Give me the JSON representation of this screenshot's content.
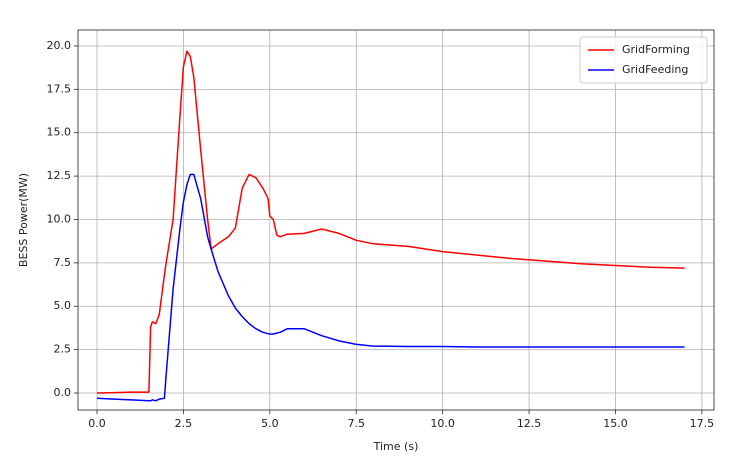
{
  "chart_data": {
    "type": "line",
    "x_label": "Time (s)",
    "y_label": "BESS Power(MW)",
    "x": [
      0,
      0.5,
      1.0,
      1.5,
      1.55,
      1.6,
      1.7,
      1.8,
      1.95,
      2.0,
      2.2,
      2.4,
      2.5,
      2.6,
      2.7,
      2.8,
      3.0,
      3.2,
      3.3,
      3.5,
      3.8,
      4.0,
      4.2,
      4.4,
      4.6,
      4.8,
      4.95,
      5.0,
      5.1,
      5.2,
      5.3,
      5.5,
      6.0,
      6.5,
      7.0,
      7.5,
      8.0,
      9.0,
      10.0,
      11.0,
      12.0,
      13.0,
      14.0,
      15.0,
      16.0,
      17.0
    ],
    "series": [
      {
        "name": "GridForming",
        "color": "#ff0000",
        "values": [
          0,
          0.02,
          0.05,
          0.05,
          3.8,
          4.1,
          4.0,
          4.5,
          6.8,
          7.5,
          10,
          16,
          18.8,
          19.7,
          19.4,
          18.2,
          14,
          10,
          8.3,
          8.6,
          9,
          9.5,
          11.8,
          12.6,
          12.4,
          11.8,
          11.2,
          10.2,
          10,
          9.1,
          9,
          9.15,
          9.2,
          9.45,
          9.2,
          8.8,
          8.6,
          8.45,
          8.15,
          7.95,
          7.75,
          7.6,
          7.45,
          7.35,
          7.25,
          7.2
        ]
      },
      {
        "name": "GridFeeding",
        "color": "#0000ff",
        "values": [
          -0.3,
          -0.35,
          -0.4,
          -0.45,
          -0.45,
          -0.4,
          -0.45,
          -0.35,
          -0.3,
          1.0,
          6,
          9.5,
          11,
          12,
          12.6,
          12.6,
          11.2,
          9,
          8.3,
          7,
          5.6,
          4.9,
          4.4,
          4.0,
          3.7,
          3.5,
          3.42,
          3.4,
          3.4,
          3.45,
          3.5,
          3.7,
          3.7,
          3.3,
          3.0,
          2.8,
          2.7,
          2.68,
          2.68,
          2.65,
          2.65,
          2.65,
          2.65,
          2.65,
          2.65,
          2.65
        ]
      }
    ],
    "xlim": [
      -0.55,
      17.85
    ],
    "xticks": [
      {
        "value": 0,
        "label": "0.0"
      },
      2.5,
      {
        "value": 5,
        "label": "5.0"
      },
      7.5,
      {
        "value": 10,
        "label": "10.0"
      },
      12.5,
      {
        "value": 15,
        "label": "15.0"
      },
      17.5
    ],
    "ylim": [
      -0.98,
      20.92
    ],
    "yticks": [
      {
        "value": 0,
        "label": "0.0"
      },
      2.5,
      {
        "value": 5,
        "label": "5.0"
      },
      7.5,
      {
        "value": 10,
        "label": "10.0"
      },
      12.5,
      {
        "value": 15,
        "label": "15.0"
      },
      17.5,
      {
        "value": 20,
        "label": "20.0"
      }
    ],
    "grid": true,
    "legend": "upper-right"
  }
}
